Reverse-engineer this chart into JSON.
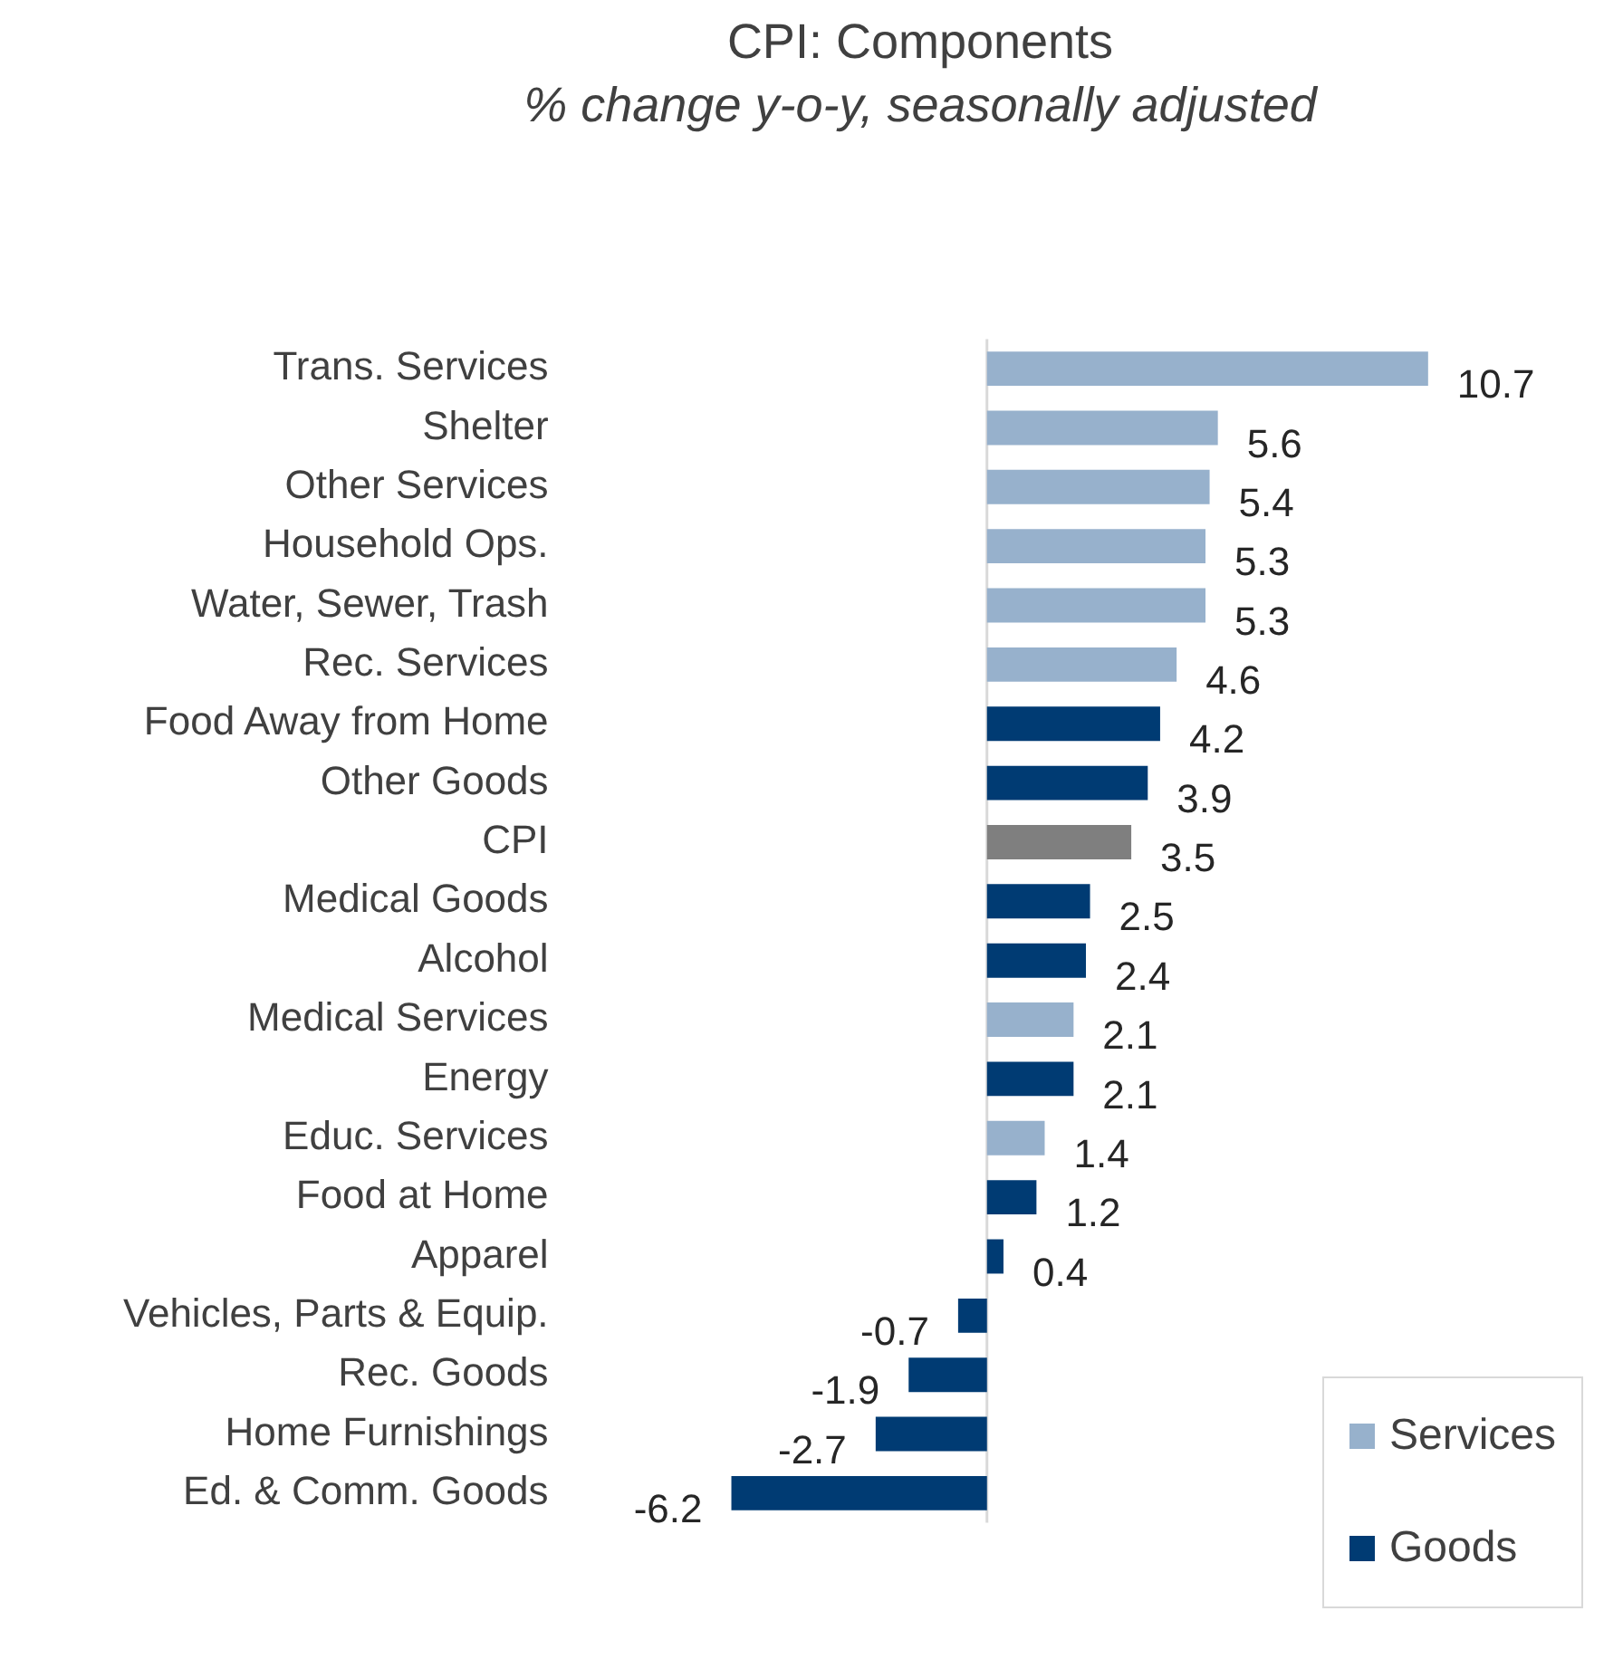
{
  "chart_data": {
    "type": "bar",
    "title": "CPI: Components",
    "subtitle": "% change y-o-y, seasonally adjusted",
    "orientation": "horizontal",
    "stacked": true,
    "categories": [
      "Trans. Services",
      "Shelter",
      "Other Services",
      "Household Ops.",
      "Water, Sewer, Trash",
      "Rec. Services",
      "Food Away from Home",
      "Other Goods",
      "CPI",
      "Medical Goods",
      "Alcohol",
      "Medical Services",
      "Energy",
      "Educ. Services",
      "Food at Home",
      "Apparel",
      "Vehicles, Parts & Equip.",
      "Rec. Goods",
      "Home Furnishings",
      "Ed. & Comm. Goods"
    ],
    "series": [
      {
        "name": "Services",
        "color": "#97b1cc",
        "values": [
          10.7,
          5.6,
          5.4,
          5.3,
          5.3,
          4.6,
          null,
          null,
          null,
          null,
          null,
          2.1,
          null,
          1.4,
          null,
          null,
          null,
          null,
          null,
          null
        ]
      },
      {
        "name": "Goods",
        "color": "#003b73",
        "values": [
          null,
          null,
          null,
          null,
          null,
          null,
          4.2,
          3.9,
          null,
          2.5,
          2.4,
          null,
          2.1,
          null,
          1.2,
          0.4,
          -0.7,
          -1.9,
          -2.7,
          -6.2
        ]
      },
      {
        "color": "#7f7f7f",
        "values": [
          null,
          null,
          null,
          null,
          null,
          null,
          null,
          null,
          3.5,
          null,
          null,
          null,
          null,
          null,
          null,
          null,
          null,
          null,
          null,
          null
        ]
      }
    ],
    "tick_labels": "y",
    "data_labels": true,
    "grid": false,
    "legend": "bottom right"
  }
}
